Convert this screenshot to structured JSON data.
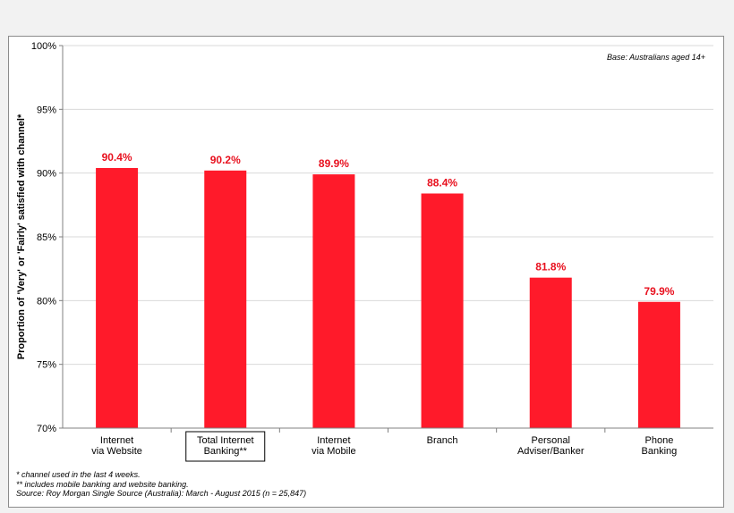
{
  "chart_data": {
    "type": "bar",
    "categories": [
      [
        "Internet",
        "via Website"
      ],
      [
        "Total Internet",
        "Banking**"
      ],
      [
        "Internet",
        "via Mobile"
      ],
      [
        "Branch"
      ],
      [
        "Personal",
        "Adviser/Banker"
      ],
      [
        "Phone",
        "Banking"
      ]
    ],
    "values": [
      90.4,
      90.2,
      89.9,
      88.4,
      81.8,
      79.9
    ],
    "value_labels": [
      "90.4%",
      "90.2%",
      "89.9%",
      "88.4%",
      "81.8%",
      "79.9%"
    ],
    "highlighted_category_index": 1,
    "ylim": [
      70,
      100
    ],
    "yticks": [
      70,
      75,
      80,
      85,
      90,
      95,
      100
    ],
    "ytick_labels": [
      "70%",
      "75%",
      "80%",
      "85%",
      "90%",
      "95%",
      "100%"
    ],
    "ylabel": "Proportion of 'Very' or 'Fairly' satisfied with channel*",
    "xlabel": "",
    "grid": true,
    "bar_color": "#ff1a2a",
    "label_color": "#e8101e",
    "annotation": "Base: Australians aged 14+"
  },
  "footnotes": [
    "* channel used in the last 4 weeks.",
    "** includes mobile banking and website banking.",
    "Source: Roy Morgan Single Source (Australia): March - August 2015 (n = 25,847)"
  ]
}
